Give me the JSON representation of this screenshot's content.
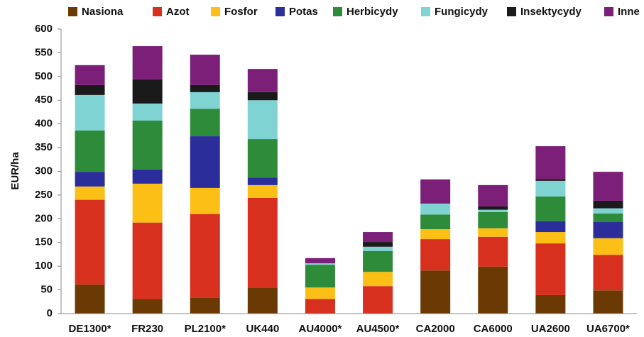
{
  "chart_data": {
    "type": "stacked_bar",
    "y_label": "EUR/ha",
    "categories": [
      "DE1300*",
      "FR230",
      "PL2100*",
      "UK440",
      "AU4000*",
      "AU4500*",
      "CA2000",
      "CA6000",
      "UA2600",
      "UA6700*"
    ],
    "series": [
      {
        "name": "Nasiona",
        "color": "#6b3a04",
        "values": [
          61,
          31,
          33,
          55,
          0,
          0,
          91,
          99,
          39,
          49
        ]
      },
      {
        "name": "Azot",
        "color": "#d7301f",
        "values": [
          179,
          161,
          177,
          189,
          31,
          58,
          66,
          63,
          109,
          75
        ]
      },
      {
        "name": "Fosfor",
        "color": "#fcbf15",
        "values": [
          28,
          82,
          55,
          27,
          24,
          30,
          21,
          18,
          24,
          35
        ]
      },
      {
        "name": "Potas",
        "color": "#2b2d9a",
        "values": [
          31,
          30,
          109,
          16,
          0,
          0,
          0,
          0,
          23,
          34
        ]
      },
      {
        "name": "Herbicydy",
        "color": "#2e8b3a",
        "values": [
          87,
          103,
          58,
          81,
          48,
          44,
          31,
          34,
          52,
          18
        ]
      },
      {
        "name": "Fungicydy",
        "color": "#80d3d3",
        "values": [
          75,
          36,
          35,
          82,
          3,
          9,
          23,
          5,
          33,
          11
        ]
      },
      {
        "name": "Insektycydy",
        "color": "#1a1a1a",
        "values": [
          21,
          51,
          15,
          17,
          0,
          10,
          0,
          7,
          4,
          16
        ]
      },
      {
        "name": "Inne",
        "color": "#7b1f78",
        "values": [
          42,
          70,
          64,
          49,
          11,
          21,
          51,
          45,
          69,
          61
        ]
      }
    ],
    "ylim": [
      0,
      600
    ],
    "yticks": [
      0,
      50,
      100,
      150,
      200,
      250,
      300,
      350,
      400,
      450,
      500,
      550,
      600
    ],
    "legend": "top"
  }
}
